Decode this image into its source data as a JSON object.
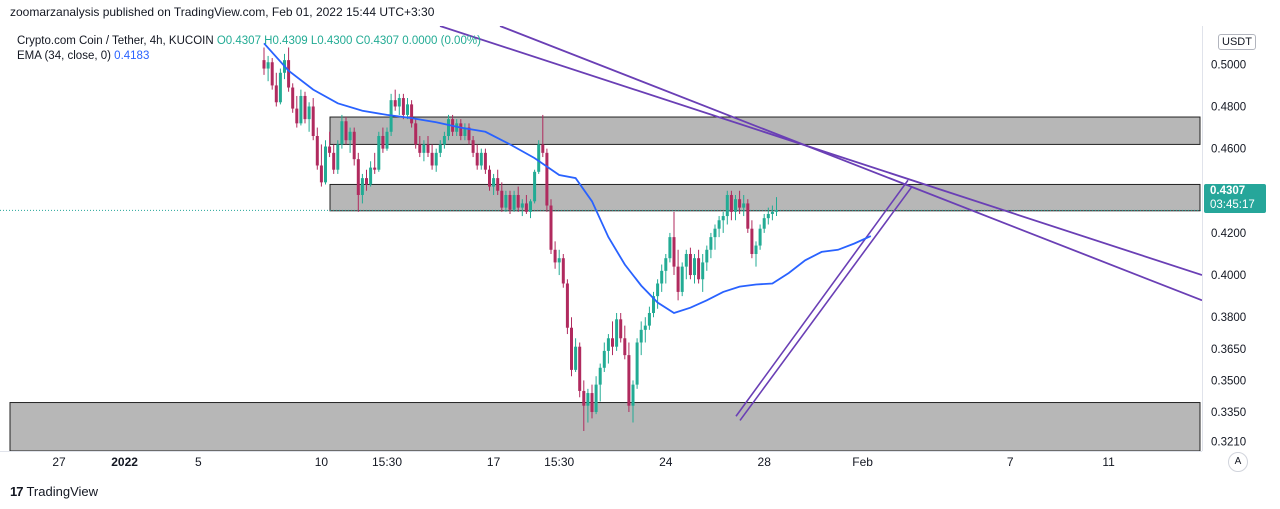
{
  "publisher_line": "zoomarzanalysis published on TradingView.com, Feb 01, 2022 15:44 UTC+3:30",
  "legend": {
    "symbol": "Crypto.com Coin / Tether, 4h, KUCOIN",
    "ohlc": "O0.4307 H0.4309 L0.4300 C0.4307 0.0000 (0.00%)",
    "ema_label": "EMA (34, close, 0)",
    "ema_value": "0.4183"
  },
  "price_axis": {
    "currency": "USDT",
    "last_price": "0.4307",
    "countdown": "03:45:17"
  },
  "footer": {
    "brand": "TradingView"
  },
  "auto_scale": "A",
  "colors": {
    "up": "#22ab94",
    "down": "#b02a5e",
    "ema": "#2962ff",
    "trendline": "#6a3fb5",
    "zone": "#b7b7b7"
  },
  "chart_data": {
    "type": "candlestick",
    "timeframe": "4h",
    "y_ticks": [
      0.321,
      0.335,
      0.35,
      0.365,
      0.38,
      0.4,
      0.42,
      0.44,
      0.46,
      0.48,
      0.5
    ],
    "ylim": [
      0.3165,
      0.5182
    ],
    "x_ticks": [
      {
        "label": "27",
        "i": -50
      },
      {
        "label": "2022",
        "i": -34
      },
      {
        "label": "5",
        "i": -16
      },
      {
        "label": "10",
        "i": 14
      },
      {
        "label": "15:30",
        "i": 30
      },
      {
        "label": "17",
        "i": 56
      },
      {
        "label": "15:30",
        "i": 72
      },
      {
        "label": "24",
        "i": 98
      },
      {
        "label": "28",
        "i": 122
      },
      {
        "label": "Feb",
        "i": 146
      },
      {
        "label": "7",
        "i": 182
      },
      {
        "label": "11",
        "i": 206
      }
    ],
    "ema_series": [
      [
        0,
        0.51
      ],
      [
        6,
        0.497
      ],
      [
        12,
        0.488
      ],
      [
        18,
        0.4815
      ],
      [
        24,
        0.478
      ],
      [
        30,
        0.476
      ],
      [
        36,
        0.4745
      ],
      [
        42,
        0.4725
      ],
      [
        48,
        0.47
      ],
      [
        54,
        0.468
      ],
      [
        60,
        0.462
      ],
      [
        66,
        0.4555
      ],
      [
        72,
        0.4475
      ],
      [
        76,
        0.446
      ],
      [
        80,
        0.435
      ],
      [
        84,
        0.418
      ],
      [
        88,
        0.405
      ],
      [
        92,
        0.395
      ],
      [
        96,
        0.387
      ],
      [
        100,
        0.382
      ],
      [
        104,
        0.3845
      ],
      [
        108,
        0.388
      ],
      [
        112,
        0.392
      ],
      [
        116,
        0.3945
      ],
      [
        120,
        0.3955
      ],
      [
        124,
        0.396
      ],
      [
        128,
        0.401
      ],
      [
        132,
        0.407
      ],
      [
        136,
        0.411
      ],
      [
        140,
        0.412
      ],
      [
        144,
        0.415
      ],
      [
        148,
        0.4185
      ]
    ],
    "candles": [
      [
        0.502,
        0.508,
        0.495,
        0.498
      ],
      [
        0.498,
        0.504,
        0.492,
        0.501
      ],
      [
        0.501,
        0.503,
        0.488,
        0.49
      ],
      [
        0.49,
        0.496,
        0.48,
        0.482
      ],
      [
        0.482,
        0.498,
        0.481,
        0.496
      ],
      [
        0.496,
        0.505,
        0.493,
        0.502
      ],
      [
        0.502,
        0.508,
        0.487,
        0.489
      ],
      [
        0.489,
        0.491,
        0.477,
        0.479
      ],
      [
        0.479,
        0.485,
        0.47,
        0.472
      ],
      [
        0.472,
        0.488,
        0.471,
        0.485
      ],
      [
        0.485,
        0.487,
        0.472,
        0.474
      ],
      [
        0.474,
        0.482,
        0.468,
        0.48
      ],
      [
        0.48,
        0.484,
        0.464,
        0.466
      ],
      [
        0.466,
        0.47,
        0.45,
        0.452
      ],
      [
        0.452,
        0.462,
        0.442,
        0.444
      ],
      [
        0.444,
        0.464,
        0.443,
        0.461
      ],
      [
        0.461,
        0.468,
        0.456,
        0.458
      ],
      [
        0.458,
        0.462,
        0.448,
        0.45
      ],
      [
        0.45,
        0.464,
        0.448,
        0.462
      ],
      [
        0.462,
        0.476,
        0.46,
        0.473
      ],
      [
        0.473,
        0.475,
        0.462,
        0.464
      ],
      [
        0.464,
        0.47,
        0.458,
        0.468
      ],
      [
        0.468,
        0.47,
        0.452,
        0.455
      ],
      [
        0.455,
        0.458,
        0.43,
        0.438
      ],
      [
        0.438,
        0.448,
        0.434,
        0.446
      ],
      [
        0.446,
        0.45,
        0.44,
        0.443
      ],
      [
        0.443,
        0.454,
        0.442,
        0.451
      ],
      [
        0.451,
        0.458,
        0.448,
        0.45
      ],
      [
        0.45,
        0.468,
        0.449,
        0.466
      ],
      [
        0.466,
        0.47,
        0.458,
        0.46
      ],
      [
        0.46,
        0.47,
        0.459,
        0.468
      ],
      [
        0.468,
        0.486,
        0.466,
        0.483
      ],
      [
        0.483,
        0.488,
        0.478,
        0.48
      ],
      [
        0.48,
        0.486,
        0.476,
        0.484
      ],
      [
        0.484,
        0.486,
        0.474,
        0.476
      ],
      [
        0.476,
        0.484,
        0.474,
        0.481
      ],
      [
        0.481,
        0.483,
        0.47,
        0.472
      ],
      [
        0.472,
        0.474,
        0.46,
        0.462
      ],
      [
        0.462,
        0.466,
        0.456,
        0.458
      ],
      [
        0.458,
        0.464,
        0.454,
        0.462
      ],
      [
        0.462,
        0.466,
        0.456,
        0.458
      ],
      [
        0.458,
        0.462,
        0.45,
        0.452
      ],
      [
        0.452,
        0.46,
        0.449,
        0.458
      ],
      [
        0.458,
        0.464,
        0.456,
        0.462
      ],
      [
        0.462,
        0.468,
        0.46,
        0.466
      ],
      [
        0.466,
        0.476,
        0.464,
        0.474
      ],
      [
        0.474,
        0.476,
        0.466,
        0.468
      ],
      [
        0.468,
        0.474,
        0.466,
        0.472
      ],
      [
        0.472,
        0.474,
        0.464,
        0.466
      ],
      [
        0.466,
        0.472,
        0.464,
        0.47
      ],
      [
        0.47,
        0.472,
        0.462,
        0.464
      ],
      [
        0.464,
        0.466,
        0.456,
        0.458
      ],
      [
        0.458,
        0.462,
        0.45,
        0.452
      ],
      [
        0.452,
        0.46,
        0.45,
        0.458
      ],
      [
        0.458,
        0.46,
        0.448,
        0.45
      ],
      [
        0.45,
        0.452,
        0.44,
        0.442
      ],
      [
        0.442,
        0.448,
        0.438,
        0.446
      ],
      [
        0.446,
        0.45,
        0.438,
        0.44
      ],
      [
        0.44,
        0.444,
        0.43,
        0.432
      ],
      [
        0.432,
        0.44,
        0.43,
        0.438
      ],
      [
        0.438,
        0.44,
        0.429,
        0.431
      ],
      [
        0.431,
        0.44,
        0.43,
        0.438
      ],
      [
        0.438,
        0.442,
        0.43,
        0.432
      ],
      [
        0.432,
        0.436,
        0.428,
        0.434
      ],
      [
        0.434,
        0.438,
        0.429,
        0.43
      ],
      [
        0.43,
        0.436,
        0.427,
        0.435
      ],
      [
        0.435,
        0.45,
        0.434,
        0.449
      ],
      [
        0.449,
        0.464,
        0.448,
        0.462
      ],
      [
        0.462,
        0.476,
        0.456,
        0.458
      ],
      [
        0.458,
        0.46,
        0.43,
        0.433
      ],
      [
        0.433,
        0.436,
        0.41,
        0.412
      ],
      [
        0.412,
        0.416,
        0.403,
        0.406
      ],
      [
        0.406,
        0.412,
        0.4,
        0.408
      ],
      [
        0.408,
        0.41,
        0.394,
        0.396
      ],
      [
        0.396,
        0.398,
        0.372,
        0.375
      ],
      [
        0.375,
        0.38,
        0.352,
        0.355
      ],
      [
        0.355,
        0.37,
        0.354,
        0.366
      ],
      [
        0.366,
        0.368,
        0.342,
        0.345
      ],
      [
        0.345,
        0.35,
        0.326,
        0.338
      ],
      [
        0.338,
        0.346,
        0.33,
        0.344
      ],
      [
        0.344,
        0.348,
        0.332,
        0.335
      ],
      [
        0.335,
        0.352,
        0.334,
        0.348
      ],
      [
        0.348,
        0.358,
        0.34,
        0.356
      ],
      [
        0.356,
        0.368,
        0.354,
        0.364
      ],
      [
        0.364,
        0.372,
        0.358,
        0.37
      ],
      [
        0.37,
        0.378,
        0.362,
        0.366
      ],
      [
        0.366,
        0.382,
        0.364,
        0.379
      ],
      [
        0.379,
        0.382,
        0.368,
        0.37
      ],
      [
        0.37,
        0.376,
        0.36,
        0.362
      ],
      [
        0.362,
        0.368,
        0.335,
        0.338
      ],
      [
        0.338,
        0.35,
        0.33,
        0.348
      ],
      [
        0.348,
        0.37,
        0.346,
        0.368
      ],
      [
        0.368,
        0.378,
        0.362,
        0.374
      ],
      [
        0.374,
        0.38,
        0.368,
        0.376
      ],
      [
        0.376,
        0.385,
        0.374,
        0.382
      ],
      [
        0.382,
        0.392,
        0.38,
        0.39
      ],
      [
        0.39,
        0.398,
        0.384,
        0.396
      ],
      [
        0.396,
        0.405,
        0.392,
        0.402
      ],
      [
        0.402,
        0.41,
        0.396,
        0.408
      ],
      [
        0.408,
        0.42,
        0.406,
        0.418
      ],
      [
        0.418,
        0.43,
        0.4,
        0.404
      ],
      [
        0.404,
        0.412,
        0.388,
        0.392
      ],
      [
        0.392,
        0.406,
        0.39,
        0.404
      ],
      [
        0.404,
        0.412,
        0.398,
        0.41
      ],
      [
        0.41,
        0.413,
        0.398,
        0.4
      ],
      [
        0.4,
        0.41,
        0.396,
        0.408
      ],
      [
        0.408,
        0.412,
        0.396,
        0.398
      ],
      [
        0.398,
        0.41,
        0.392,
        0.406
      ],
      [
        0.406,
        0.414,
        0.402,
        0.412
      ],
      [
        0.412,
        0.42,
        0.408,
        0.418
      ],
      [
        0.418,
        0.424,
        0.412,
        0.422
      ],
      [
        0.422,
        0.428,
        0.418,
        0.426
      ],
      [
        0.426,
        0.43,
        0.42,
        0.428
      ],
      [
        0.428,
        0.44,
        0.424,
        0.438
      ],
      [
        0.438,
        0.44,
        0.426,
        0.43
      ],
      [
        0.43,
        0.438,
        0.426,
        0.436
      ],
      [
        0.436,
        0.44,
        0.429,
        0.432
      ],
      [
        0.432,
        0.438,
        0.428,
        0.434
      ],
      [
        0.434,
        0.436,
        0.42,
        0.422
      ],
      [
        0.422,
        0.426,
        0.408,
        0.41
      ],
      [
        0.41,
        0.416,
        0.404,
        0.414
      ],
      [
        0.414,
        0.424,
        0.412,
        0.422
      ],
      [
        0.422,
        0.429,
        0.42,
        0.427
      ],
      [
        0.427,
        0.432,
        0.424,
        0.429
      ],
      [
        0.429,
        0.433,
        0.426,
        0.43
      ],
      [
        0.43,
        0.437,
        0.428,
        0.4307
      ]
    ]
  }
}
